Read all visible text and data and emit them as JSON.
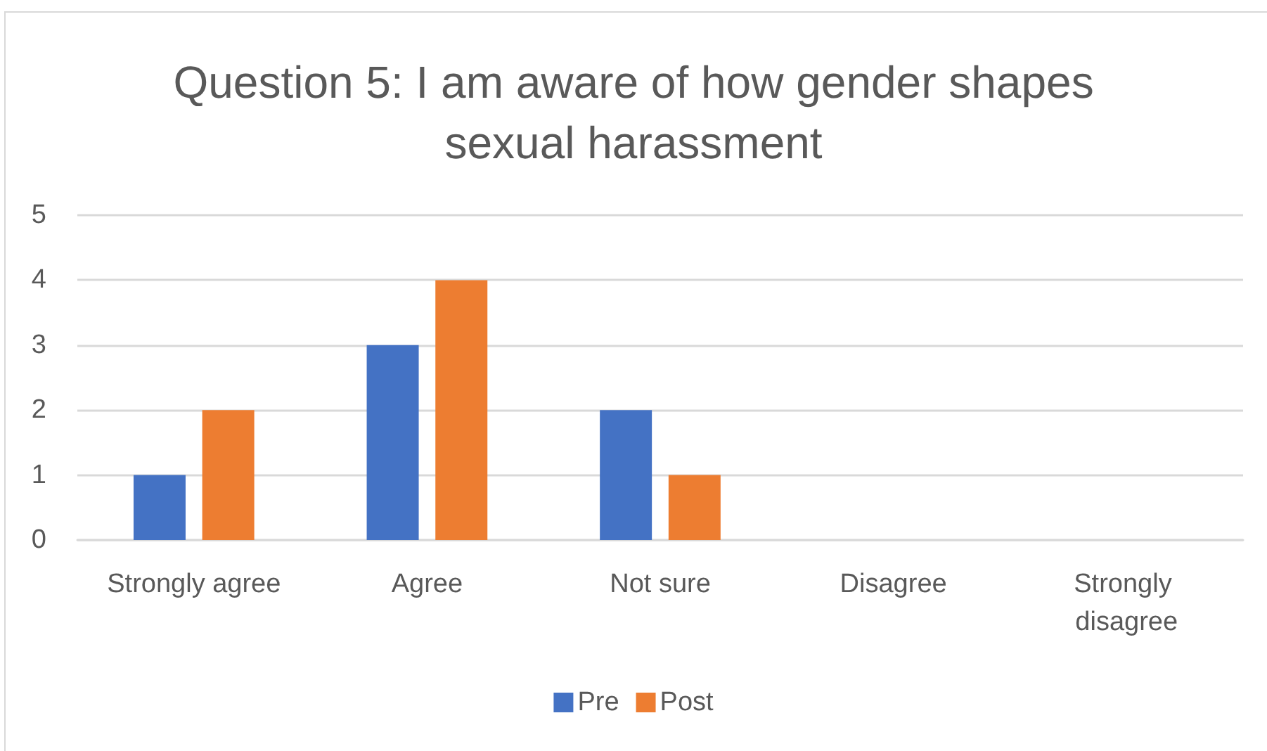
{
  "chart_data": {
    "type": "bar",
    "title": "Question 5: I am aware of how gender shapes sexual harassment",
    "categories": [
      "Strongly agree",
      "Agree",
      "Not sure",
      "Disagree",
      "Strongly disagree"
    ],
    "series": [
      {
        "name": "Pre",
        "color": "#4472c4",
        "values": [
          1,
          3,
          2,
          0,
          0
        ]
      },
      {
        "name": "Post",
        "color": "#ed7d31",
        "values": [
          2,
          4,
          1,
          0,
          0
        ]
      }
    ],
    "ylim": [
      0,
      5
    ],
    "yticks": [
      0,
      1,
      2,
      3,
      4,
      5
    ],
    "grid": "y",
    "legend": "bottom"
  }
}
